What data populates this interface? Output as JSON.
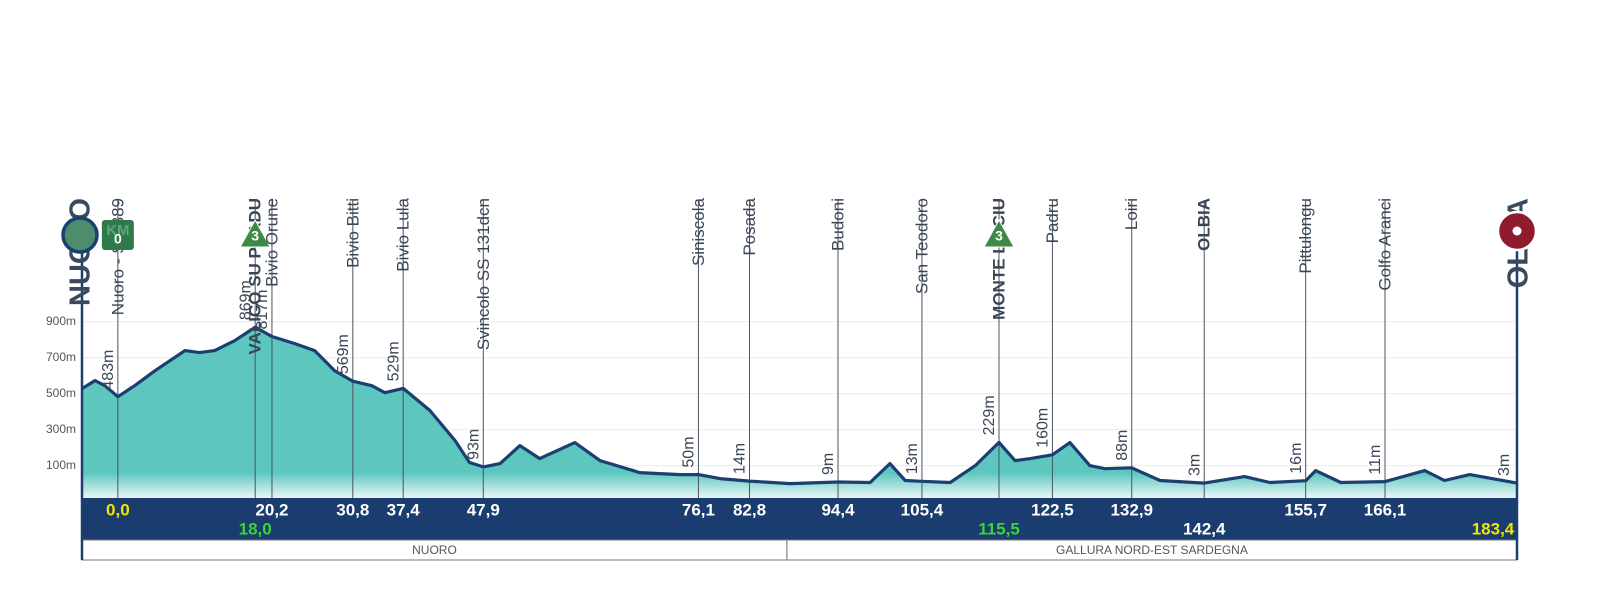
{
  "chart_data": {
    "type": "area",
    "color": "#5cc6bf",
    "line_color": "#1c3f72",
    "band_color": "#1b3c6e",
    "start_name": "NUORO",
    "xlim": [
      -4.7,
      183.4
    ],
    "ylim": [
      -80,
      1000
    ],
    "yticks": [
      {
        "value": 100,
        "label": "100m"
      },
      {
        "value": 300,
        "label": "300m"
      },
      {
        "value": 500,
        "label": "500m"
      },
      {
        "value": 700,
        "label": "700m"
      },
      {
        "value": 900,
        "label": "900m"
      }
    ],
    "grid": true,
    "x": [
      -4.7,
      -3.0,
      -1.7,
      0,
      2.2,
      4.9,
      8.8,
      10.7,
      12.7,
      15.3,
      18.0,
      20.2,
      23.2,
      25.8,
      28.4,
      30.8,
      33.3,
      35.0,
      37.4,
      40.9,
      44.2,
      46.1,
      47.9,
      50.1,
      52.7,
      55.3,
      59.9,
      63.2,
      68.4,
      73.7,
      76.1,
      78.9,
      82.8,
      88.1,
      94.4,
      98.6,
      101.2,
      103.2,
      105.4,
      109.1,
      112.4,
      115.5,
      117.6,
      119.6,
      122.5,
      124.8,
      127.4,
      129.4,
      132.9,
      136.6,
      142.4,
      147.7,
      151.0,
      155.7,
      157.0,
      160.3,
      166.1,
      171.3,
      173.9,
      177.2,
      183.4
    ],
    "values": [
      528,
      572,
      544,
      483,
      544,
      628,
      739,
      728,
      739,
      794,
      869,
      817,
      778,
      739,
      628,
      569,
      544,
      505,
      529,
      406,
      239,
      117,
      93,
      111,
      211,
      139,
      228,
      128,
      61,
      50,
      50,
      28,
      14,
      0,
      9,
      6,
      111,
      17,
      13,
      6,
      100,
      229,
      128,
      139,
      160,
      228,
      100,
      83,
      88,
      17,
      3,
      39,
      6,
      16,
      72,
      6,
      11,
      72,
      17,
      50,
      3
    ],
    "waypoints": [
      {
        "name": "Nuoro - SS 389",
        "km": 0,
        "km_label": "0,0",
        "altitude": 483,
        "altitude_label": "483m",
        "style": "start",
        "badge": {
          "text": "KM",
          "number": "0"
        }
      },
      {
        "name": "VALICO SU PRADU",
        "km": 18.0,
        "km_label": "18,0",
        "altitude": 869,
        "altitude_label": "869m",
        "style": "climb",
        "category": "3"
      },
      {
        "name": "Bivio Orune",
        "km": 20.2,
        "km_label": "20,2",
        "altitude": 817,
        "altitude_label": "817m",
        "style": "normal"
      },
      {
        "name": "Bivio Bitti",
        "km": 30.8,
        "km_label": "30,8",
        "altitude": 569,
        "altitude_label": "569m",
        "style": "normal"
      },
      {
        "name": "Bivio Lula",
        "km": 37.4,
        "km_label": "37,4",
        "altitude": 529,
        "altitude_label": "529m",
        "style": "normal"
      },
      {
        "name": "Svincolo SS 131dcn",
        "km": 47.9,
        "km_label": "47,9",
        "altitude": 93,
        "altitude_label": "93m",
        "style": "normal"
      },
      {
        "name": "Siniscola",
        "km": 76.1,
        "km_label": "76,1",
        "altitude": 50,
        "altitude_label": "50m",
        "style": "normal"
      },
      {
        "name": "Posada",
        "km": 82.8,
        "km_label": "82,8",
        "altitude": 14,
        "altitude_label": "14m",
        "style": "normal"
      },
      {
        "name": "Budoni",
        "km": 94.4,
        "km_label": "94,4",
        "altitude": 9,
        "altitude_label": "9m",
        "style": "normal"
      },
      {
        "name": "San Teodoro",
        "km": 105.4,
        "km_label": "105,4",
        "altitude": 13,
        "altitude_label": "13m",
        "style": "normal"
      },
      {
        "name": "MONTE LISCIU",
        "km": 115.5,
        "km_label": "115,5",
        "altitude": 229,
        "altitude_label": "229m",
        "style": "climb",
        "category": "3"
      },
      {
        "name": "Padru",
        "km": 122.5,
        "km_label": "122,5",
        "altitude": 160,
        "altitude_label": "160m",
        "style": "normal"
      },
      {
        "name": "Loiri",
        "km": 132.9,
        "km_label": "132,9",
        "altitude": 88,
        "altitude_label": "88m",
        "style": "normal"
      },
      {
        "name": "OLBIA",
        "km": 142.4,
        "km_label": "142,4",
        "altitude": 3,
        "altitude_label": "3m",
        "style": "town"
      },
      {
        "name": "Pittulongu",
        "km": 155.7,
        "km_label": "155,7",
        "altitude": 16,
        "altitude_label": "16m",
        "style": "normal"
      },
      {
        "name": "Golfo Aranci",
        "km": 166.1,
        "km_label": "166,1",
        "altitude": 11,
        "altitude_label": "11m",
        "style": "normal"
      },
      {
        "name": "OLBIA",
        "km": 183.4,
        "km_label": "183,4",
        "altitude": 3,
        "altitude_label": "3m",
        "style": "finish"
      }
    ],
    "regions": [
      {
        "name": "NUORO",
        "from": -4.7,
        "to": 87.7
      },
      {
        "name": "GALLURA NORD-EST SARDEGNA",
        "from": 87.7,
        "to": 183.4
      }
    ]
  }
}
